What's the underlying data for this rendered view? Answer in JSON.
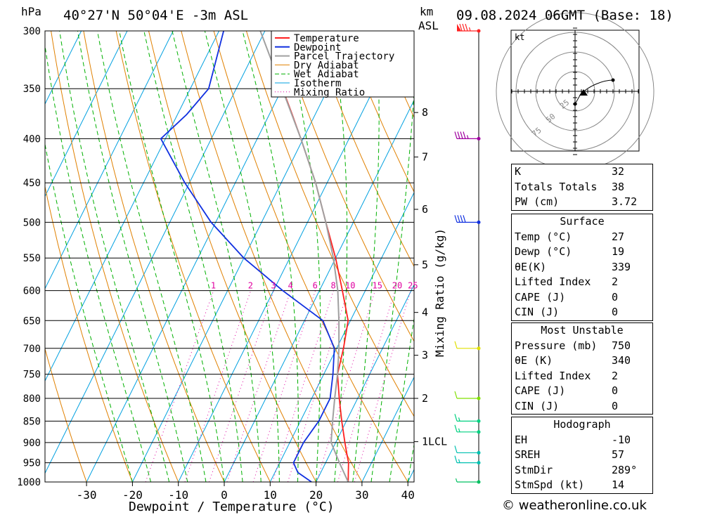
{
  "header": {
    "hpa_label": "hPa",
    "location": "40°27'N  50°04'E  -3m  ASL",
    "km_label": "km",
    "asl_label": "ASL",
    "date": "09.08.2024  06GMT  (Base: 18)"
  },
  "axes": {
    "xlabel": "Dewpoint / Temperature (°C)",
    "mixing_label": "Mixing Ratio (g/kg)",
    "lcl_label": "1LCL"
  },
  "legend": [
    "Temperature",
    "Dewpoint",
    "Parcel Trajectory",
    "Dry Adiabat",
    "Wet Adiabat",
    "Isotherm",
    "Mixing Ratio"
  ],
  "colors": {
    "temperature": "#ff2020",
    "dewpoint": "#1030e0",
    "parcel": "#a0a0a0",
    "dry_adiabat": "#e08000",
    "wet_adiabat": "#00b000",
    "isotherm": "#00a0e0",
    "mixing_ratio": "#e000a0"
  },
  "chart_data": {
    "type": "line",
    "title": "40°27'N  50°04'E  -3m  ASL",
    "xlabel": "Dewpoint / Temperature (°C)",
    "ylabel": "hPa",
    "pressure_ticks": [
      300,
      350,
      400,
      450,
      500,
      550,
      600,
      650,
      700,
      750,
      800,
      850,
      900,
      950,
      1000
    ],
    "temp_ticks": [
      -30,
      -20,
      -10,
      0,
      10,
      20,
      30,
      40
    ],
    "km_ticks": [
      {
        "km": "8",
        "p": 373
      },
      {
        "km": "7",
        "p": 420
      },
      {
        "km": "6",
        "p": 483
      },
      {
        "km": "5",
        "p": 560
      },
      {
        "km": "4",
        "p": 636
      },
      {
        "km": "3",
        "p": 713
      },
      {
        "km": "2",
        "p": 800
      },
      {
        "km": "1LCL",
        "p": 898
      }
    ],
    "mixing_ratio_labels": [
      "1",
      "2",
      "3",
      "4",
      "6",
      "8",
      "10",
      "15",
      "20",
      "25"
    ],
    "series": [
      {
        "name": "Temperature",
        "points": [
          [
            1000,
            27
          ],
          [
            975,
            26
          ],
          [
            950,
            25
          ],
          [
            925,
            23.5
          ],
          [
            900,
            22
          ],
          [
            850,
            19
          ],
          [
            800,
            16
          ],
          [
            750,
            13
          ],
          [
            700,
            11.5
          ],
          [
            650,
            9.5
          ],
          [
            600,
            5
          ],
          [
            550,
            0
          ],
          [
            500,
            -6
          ],
          [
            450,
            -12.5
          ],
          [
            400,
            -20.5
          ],
          [
            375,
            -25
          ],
          [
            357,
            -28.5
          ]
        ]
      },
      {
        "name": "Dewpoint",
        "points": [
          [
            1000,
            19
          ],
          [
            975,
            15
          ],
          [
            950,
            13
          ],
          [
            925,
            13
          ],
          [
            900,
            13
          ],
          [
            850,
            14
          ],
          [
            800,
            14
          ],
          [
            750,
            12
          ],
          [
            700,
            9.5
          ],
          [
            650,
            4
          ],
          [
            600,
            -8
          ],
          [
            550,
            -20
          ],
          [
            500,
            -31
          ],
          [
            450,
            -41
          ],
          [
            400,
            -51
          ],
          [
            375,
            -48
          ],
          [
            350,
            -46
          ],
          [
            300,
            -49
          ]
        ]
      },
      {
        "name": "Parcel Trajectory",
        "points": [
          [
            1000,
            27
          ],
          [
            950,
            23
          ],
          [
            900,
            19
          ],
          [
            850,
            17
          ],
          [
            800,
            15
          ],
          [
            750,
            13
          ],
          [
            700,
            10.5
          ],
          [
            650,
            7.5
          ],
          [
            600,
            4
          ],
          [
            550,
            -0.5
          ],
          [
            500,
            -6
          ],
          [
            450,
            -12.5
          ],
          [
            400,
            -20.5
          ],
          [
            350,
            -30
          ],
          [
            300,
            -41
          ]
        ]
      }
    ],
    "wind_barbs": [
      {
        "p": 300,
        "kt": 85,
        "color": "#ff2020"
      },
      {
        "p": 400,
        "kt": 45,
        "color": "#a000a0"
      },
      {
        "p": 500,
        "kt": 40,
        "color": "#1030e0"
      },
      {
        "p": 700,
        "kt": 10,
        "color": "#e0e000"
      },
      {
        "p": 800,
        "kt": 10,
        "color": "#80e000"
      },
      {
        "p": 850,
        "kt": 15,
        "color": "#00d080"
      },
      {
        "p": 875,
        "kt": 15,
        "color": "#00d080"
      },
      {
        "p": 925,
        "kt": 10,
        "color": "#00c0b0"
      },
      {
        "p": 950,
        "kt": 15,
        "color": "#00c0b0"
      },
      {
        "p": 1000,
        "kt": 5,
        "color": "#00c060"
      }
    ]
  },
  "hodograph": {
    "unit": "kt",
    "rings": [
      "25",
      "50",
      "75"
    ]
  },
  "indices": {
    "top": [
      {
        "label": "K",
        "value": "32"
      },
      {
        "label": "Totals Totals",
        "value": "38"
      },
      {
        "label": "PW (cm)",
        "value": "3.72"
      }
    ],
    "surface_title": "Surface",
    "surface": [
      {
        "label": "Temp (°C)",
        "value": "27"
      },
      {
        "label": "Dewp (°C)",
        "value": "19"
      },
      {
        "label": "θE(K)",
        "value": "339"
      },
      {
        "label": "Lifted Index",
        "value": "2"
      },
      {
        "label": "CAPE (J)",
        "value": "0"
      },
      {
        "label": "CIN (J)",
        "value": "0"
      }
    ],
    "mu_title": "Most Unstable",
    "mu": [
      {
        "label": "Pressure (mb)",
        "value": "750"
      },
      {
        "label": "θE (K)",
        "value": "340"
      },
      {
        "label": "Lifted Index",
        "value": "2"
      },
      {
        "label": "CAPE (J)",
        "value": "0"
      },
      {
        "label": "CIN (J)",
        "value": "0"
      }
    ],
    "hodo_title": "Hodograph",
    "hodo": [
      {
        "label": "EH",
        "value": "-10"
      },
      {
        "label": "SREH",
        "value": "57"
      },
      {
        "label": "StmDir",
        "value": "289°"
      },
      {
        "label": "StmSpd (kt)",
        "value": "14"
      }
    ]
  },
  "credit": "© weatheronline.co.uk"
}
